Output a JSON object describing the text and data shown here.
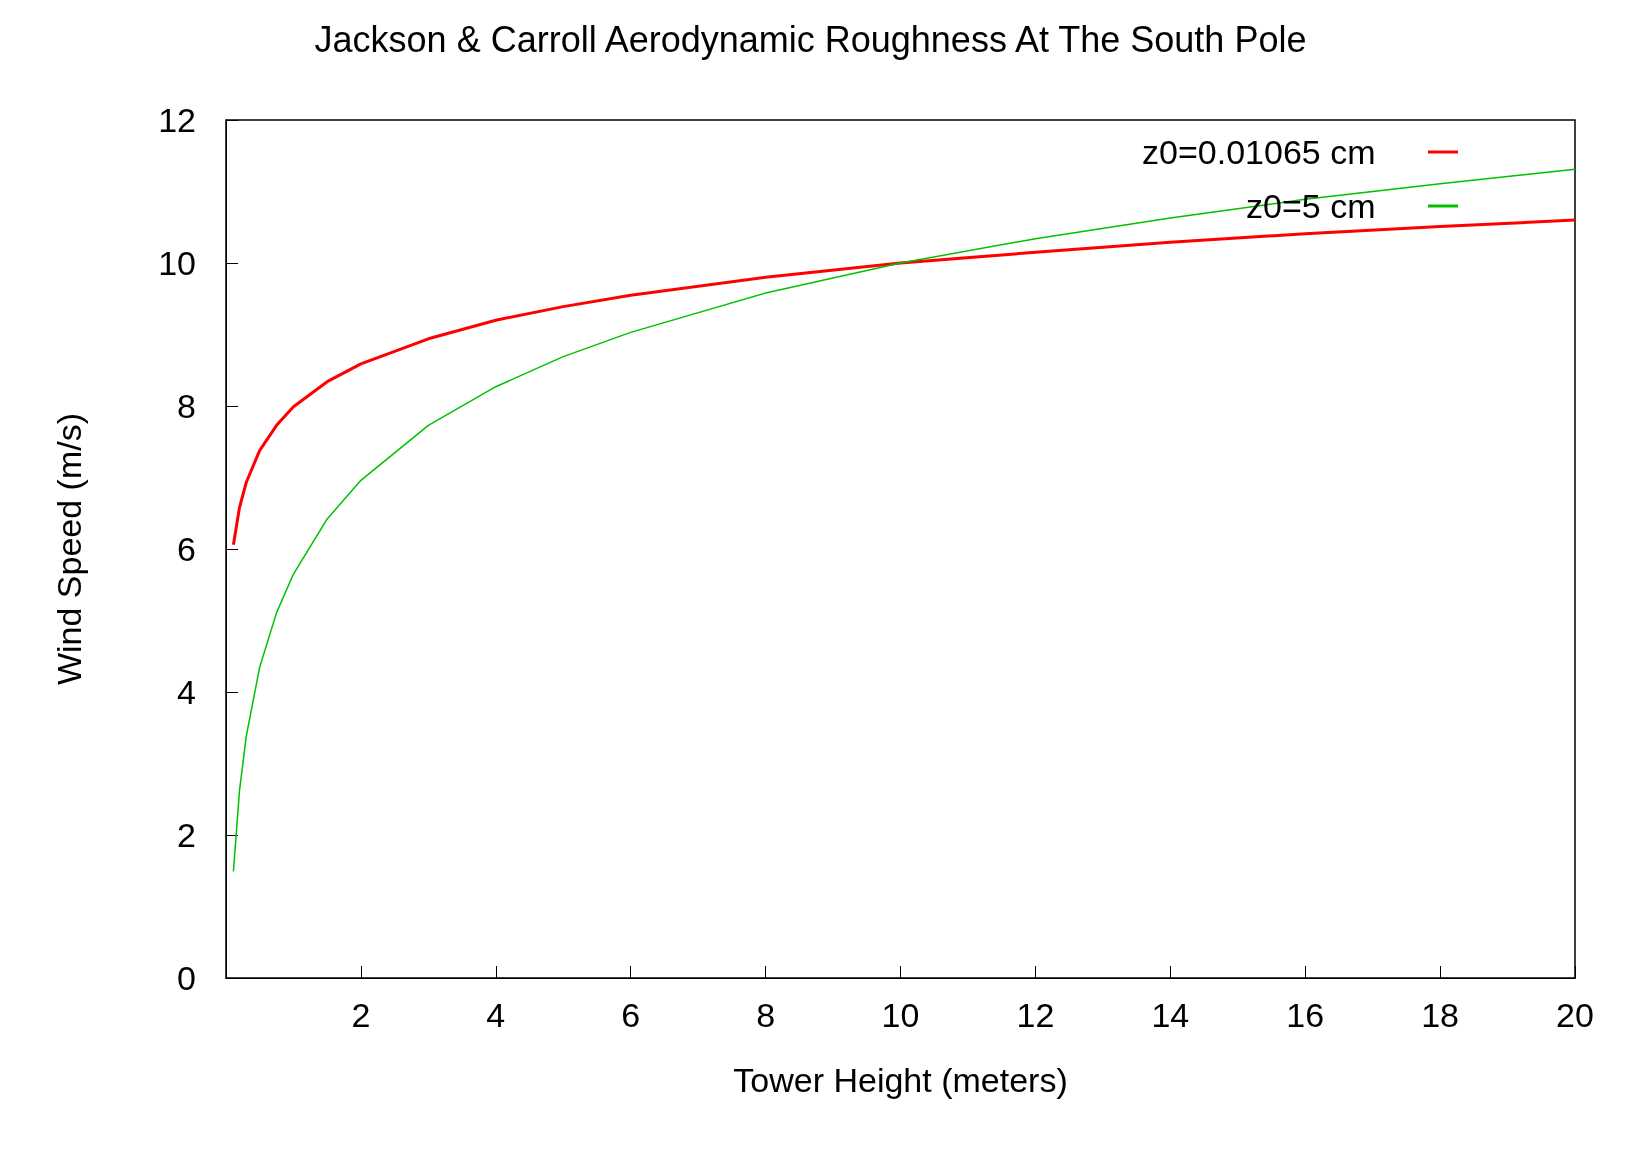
{
  "chart_data": {
    "type": "line",
    "title": "Jackson & Carroll Aerodynamic Roughness At The South Pole",
    "xlabel": "Tower Height (meters)",
    "ylabel": "Wind Speed (m/s)",
    "x": [
      0.11,
      0.2,
      0.3,
      0.5,
      0.75,
      1,
      1.5,
      2,
      3,
      4,
      5,
      6,
      8,
      10,
      12,
      14,
      16,
      18,
      20
    ],
    "series": [
      {
        "name": "z0=0.01065 cm",
        "color": "#ff0000",
        "values": [
          6.06,
          6.58,
          6.93,
          7.38,
          7.73,
          7.99,
          8.34,
          8.59,
          8.94,
          9.2,
          9.39,
          9.55,
          9.8,
          10.0,
          10.15,
          10.29,
          10.41,
          10.51,
          10.6
        ]
      },
      {
        "name": "z0=5 cm",
        "color": "#00c000",
        "values": [
          1.49,
          2.62,
          3.38,
          4.35,
          5.11,
          5.65,
          6.42,
          6.96,
          7.73,
          8.27,
          8.69,
          9.03,
          9.58,
          10.0,
          10.34,
          10.63,
          10.89,
          11.11,
          11.31
        ]
      }
    ],
    "xlim": [
      0,
      20
    ],
    "xticks": [
      2,
      4,
      6,
      8,
      10,
      12,
      14,
      16,
      18,
      20
    ],
    "ylim": [
      0,
      12
    ],
    "yticks": [
      0,
      2,
      4,
      6,
      8,
      10,
      12
    ],
    "grid": false,
    "legend": "top right",
    "marker": "none",
    "line_style": "solid"
  }
}
